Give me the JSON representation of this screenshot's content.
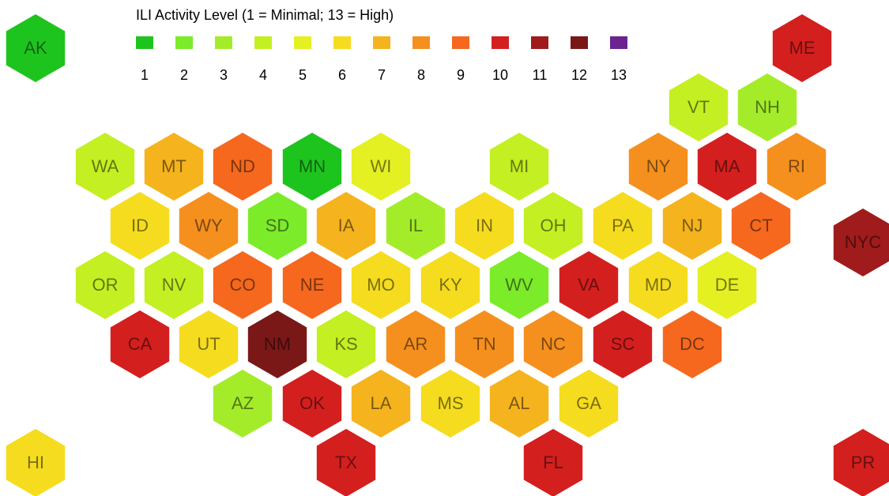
{
  "chart_data": {
    "type": "hexmap",
    "title": "ILI Activity Level  (1 = Minimal; 13 = High)",
    "legend": {
      "levels": [
        1,
        2,
        3,
        4,
        5,
        6,
        7,
        8,
        9,
        10,
        11,
        12,
        13
      ],
      "colors": [
        "#1ec41e",
        "#7ceb2a",
        "#a4ec2a",
        "#c4ef22",
        "#e4f022",
        "#f5dc1e",
        "#f5b31e",
        "#f5901e",
        "#f5681e",
        "#d41f1f",
        "#a01b1b",
        "#7a1818",
        "#6b2390"
      ]
    },
    "regions": {
      "names": [
        "AK",
        "ME",
        "VT",
        "NH",
        "WA",
        "MT",
        "ND",
        "MN",
        "WI",
        "MI",
        "NY",
        "MA",
        "RI",
        "ID",
        "WY",
        "SD",
        "IA",
        "IL",
        "IN",
        "OH",
        "PA",
        "NJ",
        "CT",
        "NYC",
        "OR",
        "NV",
        "CO",
        "NE",
        "MO",
        "KY",
        "WV",
        "VA",
        "MD",
        "DE",
        "CA",
        "UT",
        "NM",
        "KS",
        "AR",
        "TN",
        "NC",
        "SC",
        "DC",
        "AZ",
        "OK",
        "LA",
        "MS",
        "AL",
        "GA",
        "HI",
        "TX",
        "FL",
        "PR"
      ],
      "values": [
        1,
        10,
        4,
        3,
        4,
        7,
        9,
        1,
        5,
        4,
        8,
        10,
        8,
        6,
        8,
        2,
        7,
        3,
        6,
        4,
        6,
        7,
        9,
        11,
        4,
        4,
        9,
        9,
        6,
        6,
        2,
        10,
        6,
        5,
        10,
        6,
        12,
        4,
        8,
        8,
        8,
        10,
        9,
        3,
        10,
        7,
        6,
        7,
        6,
        6,
        10,
        10,
        10
      ]
    }
  }
}
